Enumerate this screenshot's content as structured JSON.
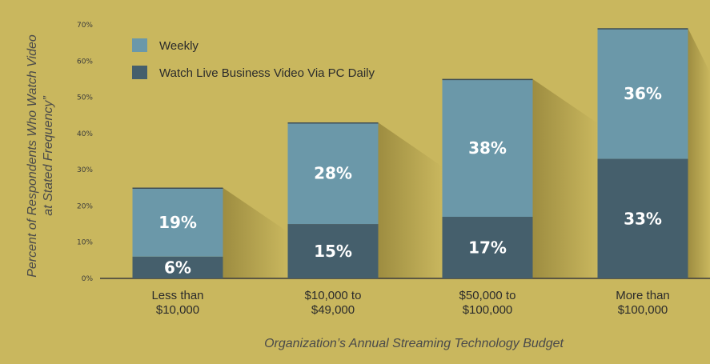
{
  "colors": {
    "background": "#c9b75e",
    "weekly": "#6b98a9",
    "daily": "#455f6c",
    "axis": "#3a3a3a"
  },
  "chart_data": {
    "type": "bar",
    "stacked": true,
    "categories": [
      "Less than\n$10,000",
      "$10,000 to\n$49,000",
      "$50,000 to\n$100,000",
      "More than\n$100,000"
    ],
    "series": [
      {
        "name": "Watch Live Business Video Via PC Daily",
        "values": [
          6,
          15,
          17,
          33
        ],
        "labels": [
          "6%",
          "15%",
          "17%",
          "33%"
        ]
      },
      {
        "name": "Weekly",
        "values": [
          19,
          28,
          38,
          36
        ],
        "labels": [
          "19%",
          "28%",
          "38%",
          "36%"
        ]
      }
    ],
    "ylim": [
      0,
      70
    ],
    "yticks": [
      "0%",
      "10%",
      "20%",
      "30%",
      "40%",
      "50%",
      "60%",
      "70%"
    ],
    "ylabel_line1": "Percent of Respondents Who Watch Video",
    "ylabel_line2": "at Stated Frequency”",
    "xlabel": "Organization’s Annual Streaming Technology Budget",
    "legend": [
      {
        "name": "Weekly",
        "color": "#6b98a9"
      },
      {
        "name": "Watch Live Business Video Via PC Daily",
        "color": "#455f6c"
      }
    ],
    "legend_position": "top-left"
  }
}
